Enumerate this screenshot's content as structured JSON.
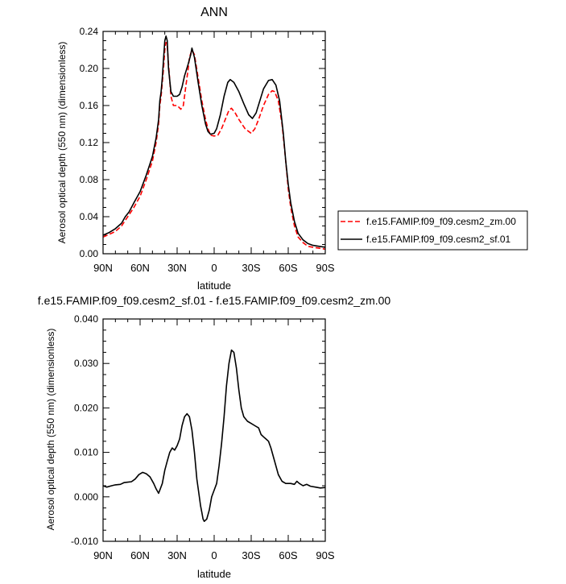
{
  "chart_data": [
    {
      "type": "line",
      "title": "ANN",
      "xlabel": "latitude",
      "ylabel": "Aerosol optical depth (550 nm) (dimensionless)",
      "xlim": [
        -90,
        90
      ],
      "ylim": [
        0,
        0.24
      ],
      "x_ticks": [
        -90,
        -60,
        -30,
        0,
        30,
        60,
        90
      ],
      "x_tick_labels": [
        "90N",
        "60N",
        "30N",
        "0",
        "30S",
        "60S",
        "90S"
      ],
      "y_ticks": [
        0,
        0.04,
        0.08,
        0.12,
        0.16,
        0.2,
        0.24
      ],
      "y_tick_labels": [
        "0.00",
        "0.04",
        "0.08",
        "0.12",
        "0.16",
        "0.20",
        "0.24"
      ],
      "legend_position": "right",
      "series": [
        {
          "name": "f.e15.FAMIP.f09_f09.cesm2_zm.00",
          "color": "#ff0000",
          "dash": "dashed",
          "points": [
            [
              -90,
              0.018
            ],
            [
              -85,
              0.021
            ],
            [
              -80,
              0.024
            ],
            [
              -75,
              0.03
            ],
            [
              -72,
              0.036
            ],
            [
              -69,
              0.042
            ],
            [
              -65,
              0.05
            ],
            [
              -60,
              0.062
            ],
            [
              -55,
              0.08
            ],
            [
              -50,
              0.1
            ],
            [
              -47,
              0.12
            ],
            [
              -45,
              0.14
            ],
            [
              -44,
              0.16
            ],
            [
              -43,
              0.17
            ],
            [
              -42,
              0.185
            ],
            [
              -41,
              0.2
            ],
            [
              -40,
              0.22
            ],
            [
              -39,
              0.228
            ],
            [
              -38,
              0.225
            ],
            [
              -37,
              0.205
            ],
            [
              -35,
              0.17
            ],
            [
              -33,
              0.16
            ],
            [
              -30,
              0.16
            ],
            [
              -27,
              0.156
            ],
            [
              -25,
              0.16
            ],
            [
              -23,
              0.18
            ],
            [
              -21,
              0.2
            ],
            [
              -20,
              0.212
            ],
            [
              -18,
              0.22
            ],
            [
              -16,
              0.215
            ],
            [
              -13,
              0.19
            ],
            [
              -10,
              0.165
            ],
            [
              -7,
              0.145
            ],
            [
              -5,
              0.135
            ],
            [
              -3,
              0.128
            ],
            [
              0,
              0.127
            ],
            [
              3,
              0.128
            ],
            [
              6,
              0.135
            ],
            [
              9,
              0.145
            ],
            [
              12,
              0.155
            ],
            [
              14,
              0.157
            ],
            [
              17,
              0.152
            ],
            [
              20,
              0.145
            ],
            [
              25,
              0.135
            ],
            [
              30,
              0.13
            ],
            [
              33,
              0.135
            ],
            [
              36,
              0.145
            ],
            [
              40,
              0.16
            ],
            [
              44,
              0.172
            ],
            [
              47,
              0.176
            ],
            [
              49,
              0.175
            ],
            [
              52,
              0.165
            ],
            [
              55,
              0.14
            ],
            [
              58,
              0.1
            ],
            [
              60,
              0.07
            ],
            [
              62,
              0.05
            ],
            [
              65,
              0.03
            ],
            [
              68,
              0.018
            ],
            [
              72,
              0.012
            ],
            [
              76,
              0.008
            ],
            [
              80,
              0.007
            ],
            [
              85,
              0.006
            ],
            [
              90,
              0.005
            ]
          ]
        },
        {
          "name": "f.e15.FAMIP.f09_f09.cesm2_sf.01",
          "color": "#000000",
          "dash": "solid",
          "points": [
            [
              -90,
              0.02
            ],
            [
              -85,
              0.023
            ],
            [
              -80,
              0.027
            ],
            [
              -75,
              0.033
            ],
            [
              -72,
              0.04
            ],
            [
              -69,
              0.045
            ],
            [
              -65,
              0.055
            ],
            [
              -60,
              0.067
            ],
            [
              -55,
              0.085
            ],
            [
              -50,
              0.105
            ],
            [
              -47,
              0.125
            ],
            [
              -45,
              0.145
            ],
            [
              -44,
              0.165
            ],
            [
              -43,
              0.175
            ],
            [
              -42,
              0.19
            ],
            [
              -41,
              0.21
            ],
            [
              -40,
              0.23
            ],
            [
              -39,
              0.235
            ],
            [
              -38,
              0.23
            ],
            [
              -37,
              0.2
            ],
            [
              -35,
              0.175
            ],
            [
              -33,
              0.17
            ],
            [
              -30,
              0.17
            ],
            [
              -28,
              0.172
            ],
            [
              -26,
              0.18
            ],
            [
              -24,
              0.192
            ],
            [
              -21,
              0.205
            ],
            [
              -19,
              0.215
            ],
            [
              -18,
              0.222
            ],
            [
              -16,
              0.212
            ],
            [
              -13,
              0.185
            ],
            [
              -10,
              0.16
            ],
            [
              -7,
              0.14
            ],
            [
              -5,
              0.132
            ],
            [
              -3,
              0.129
            ],
            [
              0,
              0.13
            ],
            [
              2,
              0.135
            ],
            [
              5,
              0.15
            ],
            [
              8,
              0.17
            ],
            [
              11,
              0.185
            ],
            [
              13,
              0.188
            ],
            [
              16,
              0.185
            ],
            [
              20,
              0.175
            ],
            [
              24,
              0.162
            ],
            [
              28,
              0.15
            ],
            [
              31,
              0.146
            ],
            [
              34,
              0.152
            ],
            [
              37,
              0.165
            ],
            [
              40,
              0.178
            ],
            [
              44,
              0.187
            ],
            [
              47,
              0.188
            ],
            [
              50,
              0.182
            ],
            [
              53,
              0.165
            ],
            [
              56,
              0.13
            ],
            [
              58,
              0.1
            ],
            [
              60,
              0.075
            ],
            [
              62,
              0.055
            ],
            [
              65,
              0.035
            ],
            [
              68,
              0.022
            ],
            [
              72,
              0.015
            ],
            [
              76,
              0.011
            ],
            [
              80,
              0.009
            ],
            [
              85,
              0.008
            ],
            [
              90,
              0.007
            ]
          ]
        }
      ]
    },
    {
      "type": "line",
      "title": "f.e15.FAMIP.f09_f09.cesm2_sf.01 - f.e15.FAMIP.f09_f09.cesm2_zm.00",
      "xlabel": "latitude",
      "ylabel": "Aerosol optical depth (550 nm) (dimensionless)",
      "xlim": [
        -90,
        90
      ],
      "ylim": [
        -0.01,
        0.04
      ],
      "x_ticks": [
        -90,
        -60,
        -30,
        0,
        30,
        60,
        90
      ],
      "x_tick_labels": [
        "90N",
        "60N",
        "30N",
        "0",
        "30S",
        "60S",
        "90S"
      ],
      "y_ticks": [
        -0.01,
        0,
        0.01,
        0.02,
        0.03,
        0.04
      ],
      "y_tick_labels": [
        "-0.010",
        "0.000",
        "0.010",
        "0.020",
        "0.030",
        "0.040"
      ],
      "series": [
        {
          "color": "#000000",
          "dash": "solid",
          "points": [
            [
              -90,
              0.0025
            ],
            [
              -87,
              0.0022
            ],
            [
              -83,
              0.0025
            ],
            [
              -80,
              0.0027
            ],
            [
              -76,
              0.0028
            ],
            [
              -73,
              0.0032
            ],
            [
              -70,
              0.0033
            ],
            [
              -67,
              0.0034
            ],
            [
              -64,
              0.004
            ],
            [
              -61,
              0.005
            ],
            [
              -58,
              0.0055
            ],
            [
              -55,
              0.0052
            ],
            [
              -52,
              0.0045
            ],
            [
              -49,
              0.003
            ],
            [
              -47,
              0.0018
            ],
            [
              -45,
              0.0008
            ],
            [
              -44,
              0.0015
            ],
            [
              -42,
              0.003
            ],
            [
              -40,
              0.006
            ],
            [
              -38,
              0.008
            ],
            [
              -36,
              0.01
            ],
            [
              -34,
              0.011
            ],
            [
              -32,
              0.0105
            ],
            [
              -30,
              0.0115
            ],
            [
              -28,
              0.013
            ],
            [
              -26,
              0.016
            ],
            [
              -24,
              0.018
            ],
            [
              -22,
              0.0187
            ],
            [
              -20,
              0.018
            ],
            [
              -18,
              0.015
            ],
            [
              -16,
              0.01
            ],
            [
              -14,
              0.004
            ],
            [
              -12,
              0.0
            ],
            [
              -11,
              -0.002
            ],
            [
              -10,
              -0.0035
            ],
            [
              -9,
              -0.005
            ],
            [
              -8,
              -0.0055
            ],
            [
              -6,
              -0.005
            ],
            [
              -4,
              -0.003
            ],
            [
              -2,
              0.0
            ],
            [
              0,
              0.0015
            ],
            [
              2,
              0.003
            ],
            [
              4,
              0.007
            ],
            [
              6,
              0.012
            ],
            [
              8,
              0.018
            ],
            [
              10,
              0.025
            ],
            [
              12,
              0.03
            ],
            [
              14,
              0.033
            ],
            [
              16,
              0.0325
            ],
            [
              18,
              0.029
            ],
            [
              20,
              0.024
            ],
            [
              22,
              0.02
            ],
            [
              24,
              0.018
            ],
            [
              27,
              0.017
            ],
            [
              30,
              0.0165
            ],
            [
              33,
              0.016
            ],
            [
              36,
              0.0155
            ],
            [
              38,
              0.014
            ],
            [
              40,
              0.0135
            ],
            [
              42,
              0.013
            ],
            [
              44,
              0.0125
            ],
            [
              46,
              0.011
            ],
            [
              49,
              0.008
            ],
            [
              52,
              0.005
            ],
            [
              55,
              0.0035
            ],
            [
              58,
              0.003
            ],
            [
              62,
              0.003
            ],
            [
              65,
              0.0028
            ],
            [
              67,
              0.0035
            ],
            [
              69,
              0.003
            ],
            [
              72,
              0.0025
            ],
            [
              75,
              0.0028
            ],
            [
              78,
              0.0024
            ],
            [
              82,
              0.0022
            ],
            [
              86,
              0.002
            ],
            [
              90,
              0.0021
            ]
          ]
        }
      ]
    }
  ]
}
